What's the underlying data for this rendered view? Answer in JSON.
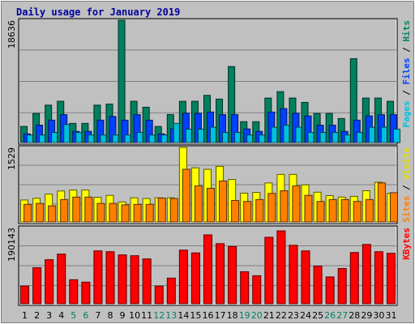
{
  "chart_data": {
    "type": "bar",
    "title": "Daily usage for January 2019",
    "categories": [
      "1",
      "2",
      "3",
      "4",
      "5",
      "6",
      "7",
      "8",
      "9",
      "10",
      "11",
      "12",
      "13",
      "14",
      "15",
      "16",
      "17",
      "18",
      "19",
      "20",
      "21",
      "22",
      "23",
      "24",
      "25",
      "26",
      "27",
      "28",
      "29",
      "30",
      "31"
    ],
    "weekend_days": [
      "5",
      "6",
      "12",
      "13",
      "19",
      "20",
      "26",
      "27"
    ],
    "panels": [
      {
        "ymax_label": "18636",
        "ymax": 18636,
        "legend": [
          {
            "text": "Pages",
            "color": "#00c0e0"
          },
          {
            "text": " / ",
            "color": "#000000"
          },
          {
            "text": "Files",
            "color": "#0040ff"
          },
          {
            "text": " / ",
            "color": "#000000"
          },
          {
            "text": "Hits",
            "color": "#008060"
          }
        ],
        "series": [
          {
            "name": "Hits",
            "color": "#008060",
            "values": [
              2450,
              4430,
              5700,
              6290,
              2920,
              2920,
              5700,
              5870,
              18636,
              6290,
              5380,
              2450,
              4270,
              6290,
              6290,
              7190,
              6620,
              11580,
              3180,
              3180,
              6780,
              7760,
              6780,
              6120,
              4430,
              4430,
              3660,
              12780,
              6780,
              6780,
              6290
            ]
          },
          {
            "name": "Files",
            "color": "#0040ff",
            "values": [
              1320,
              2650,
              3410,
              4250,
              1700,
              1700,
              3410,
              3980,
              3410,
              4250,
              3410,
              1320,
              2080,
              4460,
              4460,
              4650,
              4250,
              4250,
              2080,
              1700,
              4650,
              5180,
              4460,
              4060,
              2650,
              2650,
              1700,
              3410,
              4060,
              4250,
              4250
            ]
          },
          {
            "name": "Pages",
            "color": "#00c0e0",
            "values": [
              1150,
              1150,
              1540,
              2730,
              1540,
              1150,
              1150,
              1150,
              1150,
              1540,
              1150,
              1150,
              2920,
              2040,
              2040,
              2340,
              1540,
              1540,
              1150,
              1150,
              2340,
              2640,
              2340,
              1540,
              1540,
              1540,
              1150,
              1540,
              2340,
              2340,
              2040
            ]
          }
        ]
      },
      {
        "ymax_label": "1529",
        "ymax": 1529,
        "legend": [
          {
            "text": "Sites",
            "color": "#ff8000"
          },
          {
            "text": " / ",
            "color": "#000000"
          },
          {
            "text": "Visits",
            "color": "#e0e000"
          }
        ],
        "series": [
          {
            "name": "Visits",
            "color": "#ffff00",
            "values": [
              450,
              485,
              570,
              635,
              655,
              655,
              505,
              545,
              410,
              495,
              480,
              495,
              495,
              1529,
              1110,
              1080,
              1140,
              870,
              590,
              605,
              800,
              975,
              975,
              760,
              610,
              540,
              510,
              525,
              640,
              815,
              585
            ]
          },
          {
            "name": "Sites",
            "color": "#ff8000",
            "values": [
              360,
              380,
              330,
              460,
              510,
              510,
              380,
              380,
              350,
              360,
              360,
              490,
              480,
              1080,
              740,
              690,
              840,
              440,
              420,
              460,
              585,
              640,
              740,
              545,
              420,
              460,
              460,
              420,
              460,
              800,
              600
            ]
          }
        ]
      },
      {
        "ymax_label": "190143",
        "ymax": 190143,
        "legend": [
          {
            "text": "KBytes",
            "color": "#ff0000"
          }
        ],
        "series": [
          {
            "name": "KBytes",
            "color": "#ff0000",
            "values": [
              44000,
              90000,
              110000,
              124000,
              60000,
              54000,
              132000,
              130000,
              122000,
              120000,
              112000,
              44000,
              64000,
              134000,
              127000,
              172000,
              150000,
              143000,
              80000,
              70000,
              166000,
              182000,
              146000,
              132000,
              94000,
              67000,
              88000,
              128000,
              148000,
              130000,
              126000
            ]
          }
        ]
      }
    ]
  }
}
